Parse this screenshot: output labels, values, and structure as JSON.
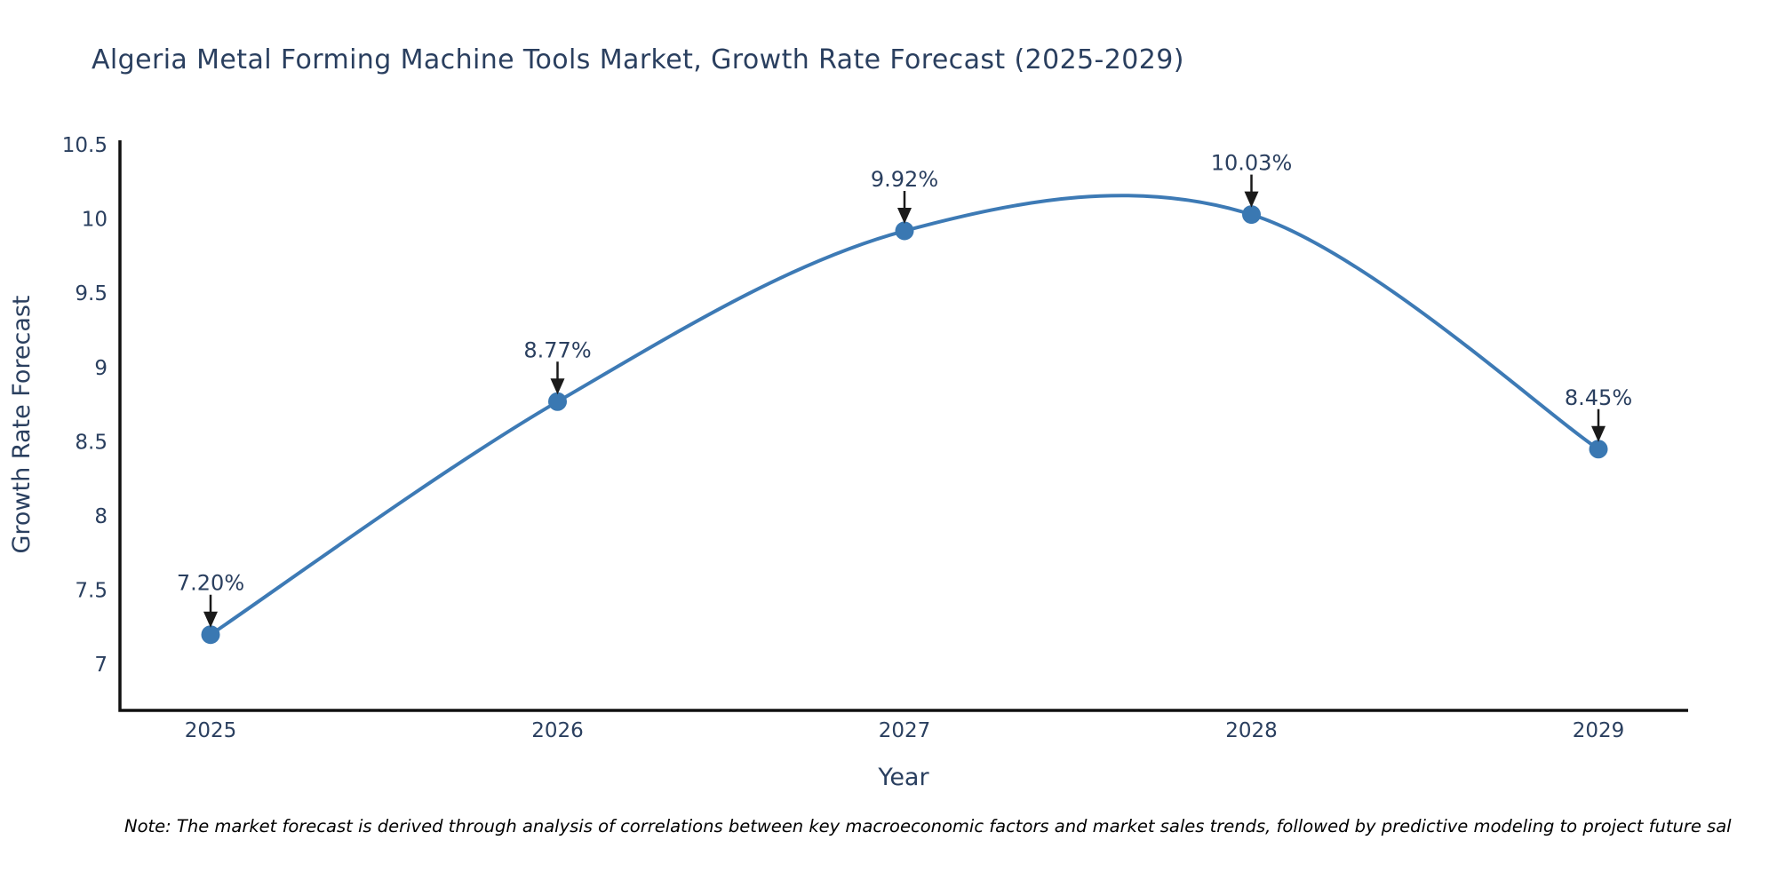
{
  "note": "Note: The market forecast is derived through analysis of correlations between key macroeconomic factors and market sales trends, followed by predictive modeling to project future sal",
  "chart_data": {
    "type": "line",
    "title": "Algeria Metal Forming Machine Tools Market, Growth Rate Forecast (2025-2029)",
    "xlabel": "Year",
    "ylabel": "Growth Rate Forecast",
    "categories": [
      "2025",
      "2026",
      "2027",
      "2028",
      "2029"
    ],
    "values": [
      7.2,
      8.77,
      9.92,
      10.03,
      8.45
    ],
    "point_labels": [
      "7.20%",
      "8.77%",
      "9.92%",
      "10.03%",
      "8.45%"
    ],
    "yticks": [
      "7",
      "7.5",
      "8",
      "8.5",
      "9",
      "9.5",
      "10",
      "10.5"
    ],
    "ytick_values": [
      7,
      7.5,
      8,
      8.5,
      9,
      9.5,
      10,
      10.5
    ],
    "ylim": [
      6.69,
      10.53
    ],
    "grid": false,
    "legend": "none",
    "line_style": "spline",
    "marker_style": "circle",
    "annotation_style": "label-with-down-arrow",
    "colors": {
      "line": "#3d7ab5",
      "marker": "#3a78b2",
      "axis": "#101010",
      "text": "#2a3f5f",
      "arrow": "#1a1a1a",
      "note": "#000000"
    }
  }
}
